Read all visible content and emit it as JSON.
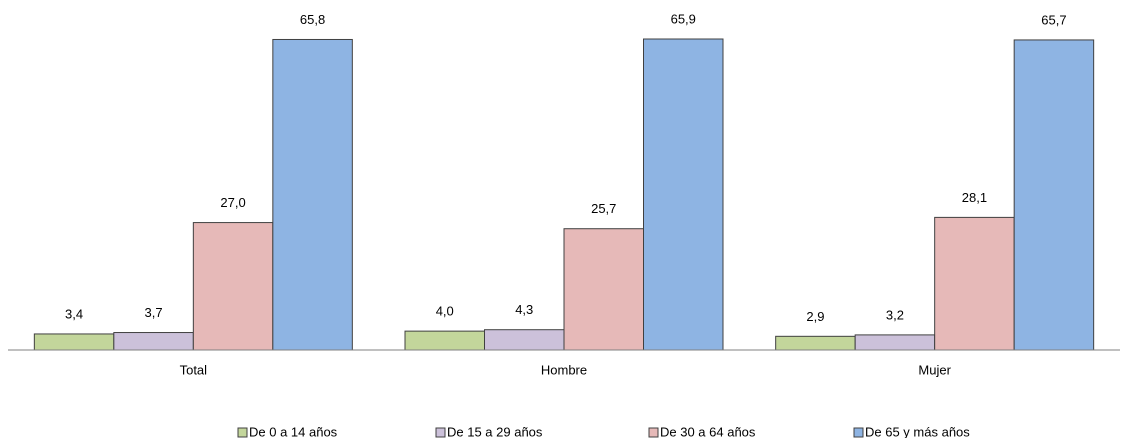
{
  "chart_data": {
    "type": "bar",
    "categories": [
      "Total",
      "Hombre",
      "Mujer"
    ],
    "series": [
      {
        "name": "De 0 a 14 años",
        "color": "#c3d69b",
        "values": [
          3.4,
          4.0,
          2.9
        ],
        "value_labels": [
          "3,4",
          "4,0",
          "2,9"
        ]
      },
      {
        "name": "De 15 a 29 años",
        "color": "#ccc1da",
        "values": [
          3.7,
          4.3,
          3.2
        ],
        "value_labels": [
          "3,7",
          "4,3",
          "3,2"
        ]
      },
      {
        "name": "De 30 a 64 años",
        "color": "#e6b9b8",
        "values": [
          27.0,
          25.7,
          28.1
        ],
        "value_labels": [
          "27,0",
          "25,7",
          "28,1"
        ]
      },
      {
        "name": "De 65 y más años",
        "color": "#8eb4e3",
        "values": [
          65.8,
          65.9,
          65.7
        ],
        "value_labels": [
          "65,8",
          "65,9",
          "65,7"
        ]
      }
    ],
    "legend": "bottom"
  }
}
